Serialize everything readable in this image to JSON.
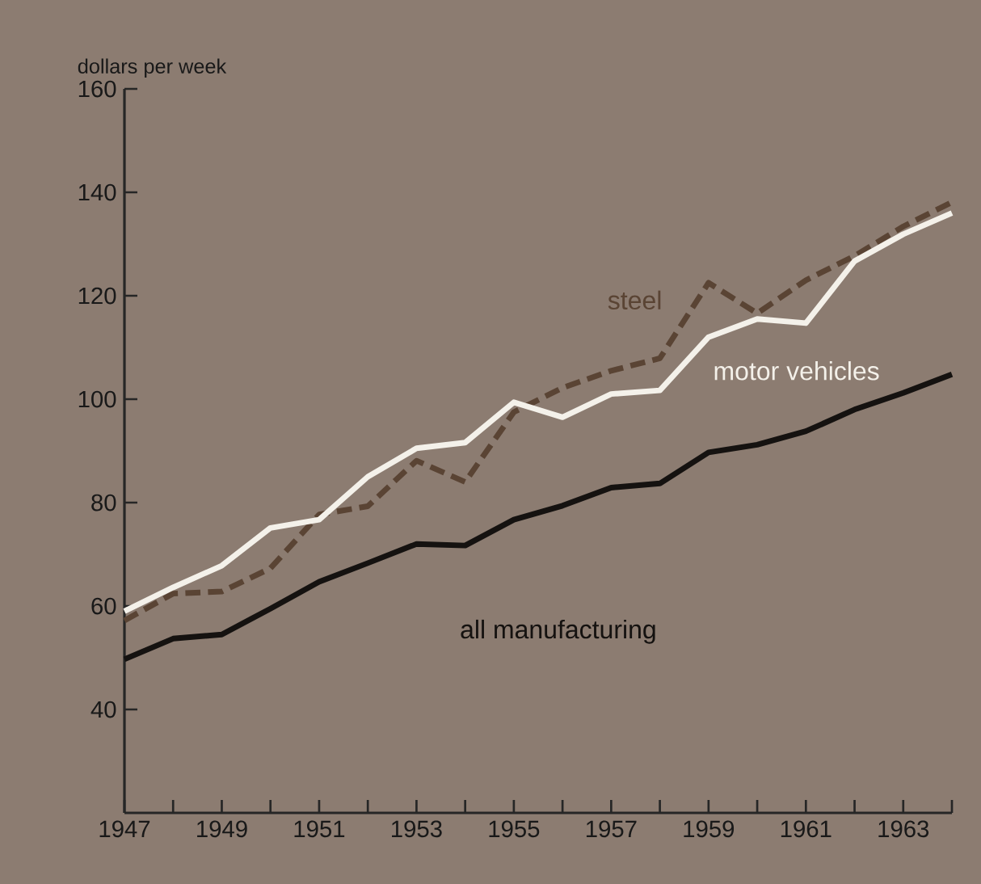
{
  "chart_data": {
    "type": "line",
    "ylabel": "dollars per week",
    "x": [
      1947,
      1948,
      1949,
      1950,
      1951,
      1952,
      1953,
      1954,
      1955,
      1956,
      1957,
      1958,
      1959,
      1960,
      1961,
      1962,
      1963,
      1964
    ],
    "series": [
      {
        "name": "steel",
        "color": "#5a4434",
        "line_style": "dashed",
        "values": [
          57.2,
          62.4,
          62.8,
          67.3,
          77.7,
          79.3,
          88.1,
          84,
          97.5,
          102.2,
          105.5,
          107.9,
          122.5,
          116.6,
          123,
          127.7,
          133.4,
          138.1
        ]
      },
      {
        "name": "motor vehicles",
        "color": "#f4f1ea",
        "line_style": "solid",
        "values": [
          59,
          63.6,
          67.8,
          75.1,
          76.7,
          85,
          90.5,
          91.6,
          99.4,
          96.5,
          101,
          101.7,
          112,
          115.5,
          114.7,
          126.7,
          131.9,
          136
        ]
      },
      {
        "name": "all manufacturing",
        "color": "#151210",
        "line_style": "solid",
        "values": [
          49.7,
          53.7,
          54.5,
          59.5,
          64.7,
          68.3,
          72,
          71.7,
          76.7,
          79.4,
          82.9,
          83.7,
          89.7,
          91.2,
          93.8,
          98,
          101.2,
          104.8
        ]
      }
    ],
    "xlim": [
      1947,
      1964
    ],
    "ylim": [
      20,
      160
    ],
    "xticks": [
      1947,
      {
        "value": 1948,
        "label": null
      },
      1949,
      {
        "value": 1950,
        "label": null
      },
      1951,
      {
        "value": 1952,
        "label": null
      },
      1953,
      {
        "value": 1954,
        "label": null
      },
      1955,
      {
        "value": 1956,
        "label": null
      },
      1957,
      {
        "value": 1958,
        "label": null
      },
      1959,
      {
        "value": 1960,
        "label": null
      },
      1961,
      {
        "value": 1962,
        "label": null
      },
      1963,
      {
        "value": 1964,
        "label": null
      }
    ],
    "yticks": [
      40,
      60,
      80,
      100,
      120,
      140,
      160
    ],
    "grid": false,
    "legend": false,
    "marker": "none"
  }
}
